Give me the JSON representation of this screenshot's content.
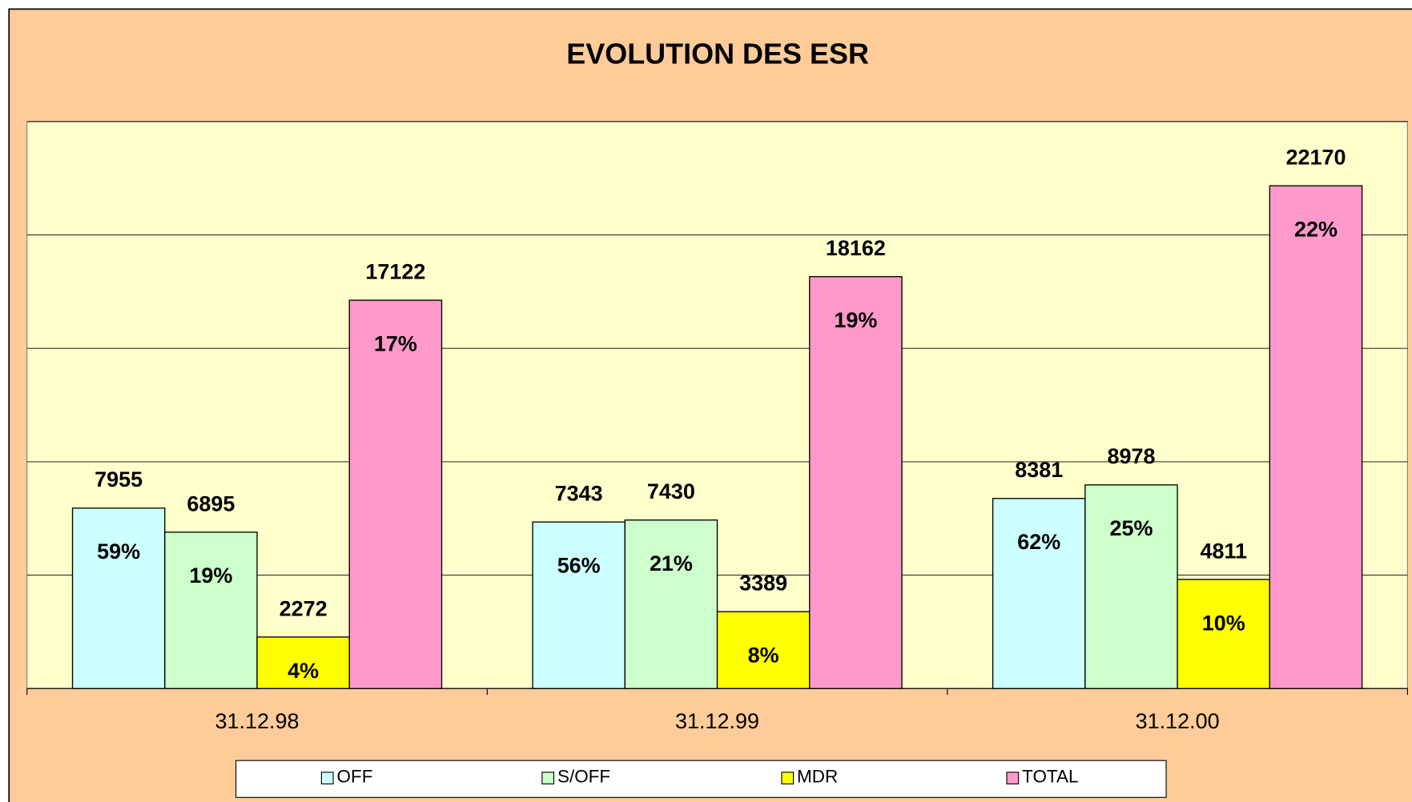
{
  "chart_data": {
    "type": "bar",
    "title": "EVOLUTION  DES  ESR",
    "categories": [
      "31.12.98",
      "31.12.99",
      "31.12.00"
    ],
    "series": [
      {
        "name": "OFF",
        "color": "#ccffff",
        "values": [
          7955,
          7343,
          8381
        ],
        "share_labels": [
          "59%",
          "56%",
          "62%"
        ]
      },
      {
        "name": "S/OFF",
        "color": "#ccffcc",
        "values": [
          6895,
          7430,
          8978
        ],
        "share_labels": [
          "19%",
          "21%",
          "25%"
        ]
      },
      {
        "name": "MDR",
        "color": "#ffff00",
        "values": [
          2272,
          3389,
          4811
        ],
        "share_labels": [
          "4%",
          "8%",
          "10%"
        ]
      },
      {
        "name": "TOTAL",
        "color": "#ff99cc",
        "values": [
          17122,
          18162,
          22170
        ],
        "share_labels": [
          "17%",
          "19%",
          "22%"
        ]
      }
    ],
    "ylim": [
      0,
      25000
    ],
    "yticks": [
      0,
      5000,
      10000,
      15000,
      20000,
      25000
    ],
    "grid": true,
    "legend": "bottom"
  }
}
